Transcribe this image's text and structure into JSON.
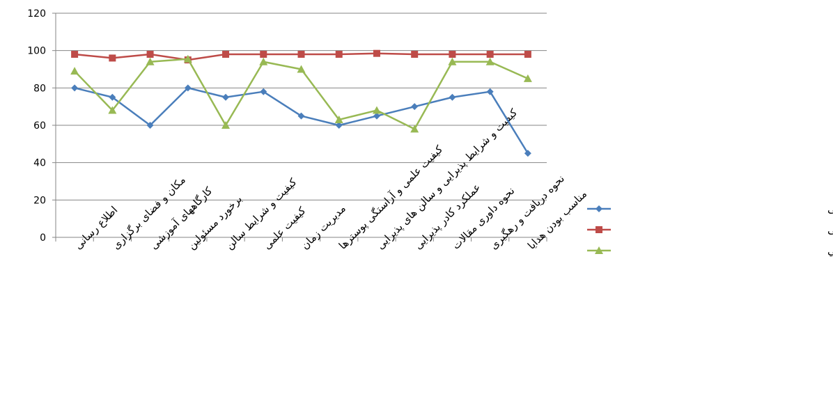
{
  "chart_data": {
    "type": "line",
    "title": "",
    "xlabel": "",
    "ylabel": "",
    "ylim": [
      0,
      120
    ],
    "yticks": [
      0,
      20,
      40,
      60,
      80,
      100,
      120
    ],
    "grid": true,
    "legend_position": "right",
    "categories": [
      "اطلاع رسانی",
      "مکان و فضای برگزاری",
      "کارگاههای آموزشی",
      "برخورد مسئولین",
      "کیفیت و شرایط سالن",
      "کیفیت علمی",
      "مدیریت زمان",
      "کیفیت علمی و آراستگی پوسترها",
      "کیفیت و شرایط پذیرایی و سالن های پذیرایی",
      "عملکرد کادر پذیرایی",
      "نحوه داوری مقالات",
      "نحوه دریافت و رهگیری",
      "مناسب بودن هدایا"
    ],
    "series": [
      {
        "name": "سیزدهمین کنفرانس ملی جوش و بازرسی",
        "color": "#4a7ebb",
        "marker": "diamond",
        "values": [
          80,
          75,
          60,
          80,
          75,
          78,
          65,
          60,
          65,
          70,
          75,
          78,
          45
        ]
      },
      {
        "name": "چهاردهمین کنفرانس ملی جوش و بازرسی",
        "color": "#be4b48",
        "marker": "square",
        "values": [
          98,
          96,
          98,
          95,
          98,
          98,
          98,
          98,
          98.5,
          98,
          98,
          98,
          98
        ]
      },
      {
        "name": "پانزدهمين كنفرانس ملي جوش و بازرسي",
        "color": "#98b954",
        "marker": "triangle",
        "values": [
          89,
          68,
          94,
          95.5,
          60,
          94,
          90,
          63,
          68,
          58,
          94,
          94,
          85
        ]
      }
    ]
  }
}
